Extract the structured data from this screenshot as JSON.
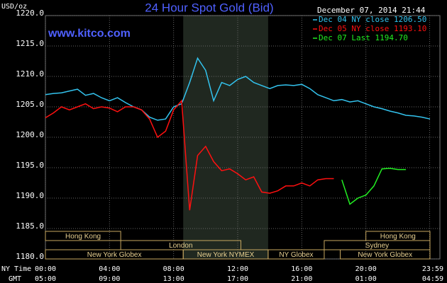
{
  "chart_data": {
    "type": "line",
    "title": "24 Hour Spot Gold (Bid)",
    "timestamp": "December 07, 2014 21:44",
    "website": "www.kitco.com",
    "y_label": "USD/oz",
    "x_label": "NY Time",
    "x2_label": "GMT",
    "x": [
      0,
      0.5,
      1,
      1.5,
      2,
      2.5,
      3,
      3.5,
      4,
      4.5,
      5,
      5.5,
      6,
      6.5,
      7,
      7.5,
      8,
      8.5,
      9,
      9.5,
      10,
      10.5,
      11,
      11.5,
      12,
      12.5,
      13,
      13.5,
      14,
      14.5,
      15,
      15.5,
      16,
      16.5,
      17,
      17.5,
      18,
      18.5,
      19,
      19.5,
      20,
      20.5,
      21,
      21.5,
      22,
      22.5,
      23,
      23.5,
      24
    ],
    "series": [
      {
        "name": "Dec 04 NY close 1206.50",
        "color": "#33c3ee",
        "values": [
          1207.0,
          1207.2,
          1207.3,
          1207.6,
          1207.9,
          1206.9,
          1207.2,
          1206.5,
          1206.0,
          1206.5,
          1205.7,
          1205.0,
          1204.5,
          1203.3,
          1202.8,
          1203.0,
          1205.0,
          1205.5,
          1209.0,
          1213.0,
          1211.0,
          1206.0,
          1209.0,
          1208.5,
          1209.5,
          1210.0,
          1209.0,
          1208.5,
          1208.0,
          1208.5,
          1208.6,
          1208.5,
          1208.7,
          1208.0,
          1207.0,
          1206.5,
          1206.0,
          1206.2,
          1205.8,
          1206.0,
          1205.5,
          1205.0,
          1204.7,
          1204.3,
          1204.0,
          1203.6,
          1203.5,
          1203.3,
          1203.0
        ]
      },
      {
        "name": "Dec 05 NY close 1193.10",
        "color": "#ff1010",
        "values": [
          1203.2,
          1204.0,
          1205.0,
          1204.5,
          1205.0,
          1205.5,
          1204.7,
          1205.0,
          1204.8,
          1204.2,
          1205.0,
          1205.0,
          1204.5,
          1203.0,
          1200.0,
          1201.0,
          1204.5,
          1206.0,
          1188.0,
          1197.0,
          1198.5,
          1196.0,
          1194.5,
          1194.8,
          1194.0,
          1193.0,
          1193.5,
          1191.0,
          1190.8,
          1191.2,
          1192.0,
          1192.0,
          1192.5,
          1192.0,
          1193.0,
          1193.2,
          1193.2,
          null,
          null,
          null,
          null,
          null,
          null,
          null,
          null,
          null,
          null,
          null,
          null
        ]
      },
      {
        "name": "Dec 07 Last 1194.70",
        "color": "#22ee22",
        "values": [
          null,
          null,
          null,
          null,
          null,
          null,
          null,
          null,
          null,
          null,
          null,
          null,
          null,
          null,
          null,
          null,
          null,
          null,
          null,
          null,
          null,
          null,
          null,
          null,
          null,
          null,
          null,
          null,
          null,
          null,
          null,
          null,
          null,
          null,
          null,
          null,
          null,
          1193.0,
          1189.0,
          1190.0,
          1190.5,
          1192.0,
          1194.8,
          1194.9,
          1194.7,
          1194.7,
          null,
          null,
          null
        ]
      }
    ],
    "xlim": [
      0,
      24
    ],
    "xticks": [
      {
        "value": 0,
        "label": "00:00"
      },
      {
        "value": 4,
        "label": "04:00"
      },
      {
        "value": 8,
        "label": "08:00"
      },
      {
        "value": 12,
        "label": "12:00"
      },
      {
        "value": 16,
        "label": "16:00"
      },
      {
        "value": 20,
        "label": "20:00"
      },
      {
        "value": 23.98,
        "label": "23:59"
      }
    ],
    "x2ticks": [
      {
        "value": 0,
        "label": "05:00"
      },
      {
        "value": 4,
        "label": "09:00"
      },
      {
        "value": 8,
        "label": "13:00"
      },
      {
        "value": 12,
        "label": "17:00"
      },
      {
        "value": 16,
        "label": "21:00"
      },
      {
        "value": 20,
        "label": "01:00"
      },
      {
        "value": 23.98,
        "label": "04:59"
      }
    ],
    "ylim": [
      1180,
      1220
    ],
    "yticks": [
      {
        "value": 1180,
        "label": "1180.0"
      },
      {
        "value": 1185,
        "label": "1185.0"
      },
      {
        "value": 1190,
        "label": "1190.0"
      },
      {
        "value": 1195,
        "label": "1195.0"
      },
      {
        "value": 1200,
        "label": "1200.0"
      },
      {
        "value": 1205,
        "label": "1205.0"
      },
      {
        "value": 1210,
        "label": "1210.0"
      },
      {
        "value": 1215,
        "label": "1215.0"
      },
      {
        "value": 1220,
        "label": "1220.0"
      }
    ],
    "grid": true,
    "shaded_range": [
      8.6,
      13.9
    ],
    "sessions": [
      {
        "label": "Hong Kong",
        "row": 0,
        "start": 0,
        "end": 4.7
      },
      {
        "label": "Hong Kong",
        "row": 0,
        "start": 20.0,
        "end": 24
      },
      {
        "label": "London",
        "row": 1,
        "start": 4.7,
        "end": 12.2
      },
      {
        "label": "Sydney",
        "row": 1,
        "start": 17.4,
        "end": 24
      },
      {
        "label": "New York Globex",
        "row": 2,
        "start": 0,
        "end": 8.6
      },
      {
        "label": "New York NYMEX",
        "row": 2,
        "start": 8.6,
        "end": 13.9
      },
      {
        "label": "NY Globex",
        "row": 2,
        "start": 13.9,
        "end": 17.4
      },
      {
        "label": "New York Globex",
        "row": 2,
        "start": 18.4,
        "end": 24
      }
    ]
  }
}
